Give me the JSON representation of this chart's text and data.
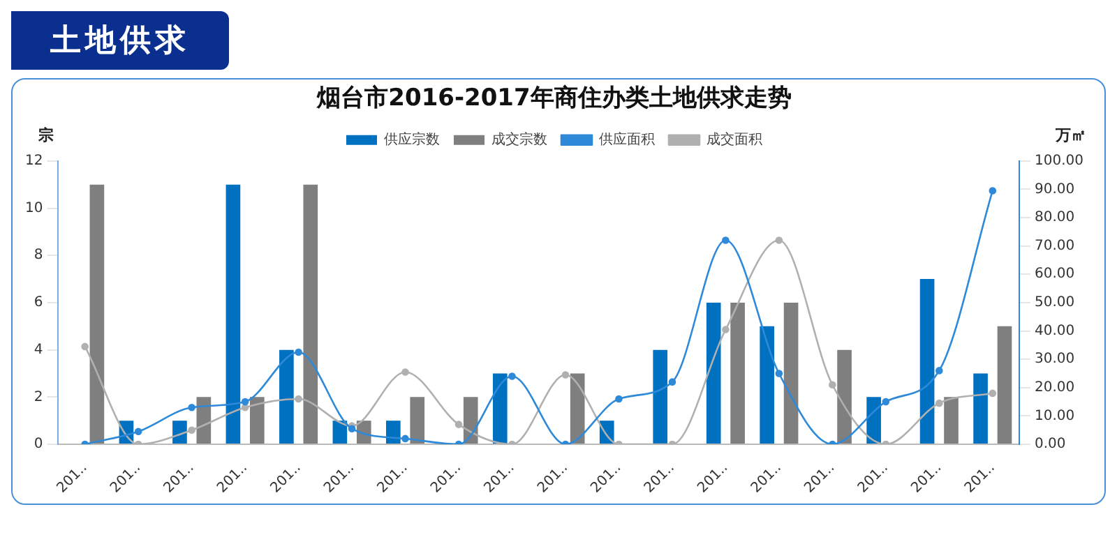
{
  "chart_data": {
    "type": "bar",
    "title": "烟台市2016-2017年商住办类土地供求走势",
    "ylabel": "宗",
    "y2label": "万㎡",
    "annotations": [
      "土地供求"
    ],
    "categories": [
      "201..",
      "201..",
      "201..",
      "201..",
      "201..",
      "201..",
      "201..",
      "201..",
      "201..",
      "201..",
      "201..",
      "201..",
      "201..",
      "201..",
      "201..",
      "201..",
      "201..",
      "201.."
    ],
    "series": [
      {
        "name": "供应宗数",
        "color": "#0070c0",
        "values": [
          0,
          1,
          1,
          11,
          4,
          1,
          1,
          0,
          3,
          0,
          1,
          4,
          6,
          5,
          0,
          2,
          7,
          3
        ]
      },
      {
        "name": "成交宗数",
        "color": "#7f7f7f",
        "values": [
          11,
          0,
          2,
          2,
          11,
          1,
          2,
          2,
          0,
          3,
          0,
          0,
          6,
          6,
          4,
          0,
          2,
          5
        ]
      },
      {
        "name": "供应面积",
        "type": "line",
        "axis": "y2",
        "color": "#2e8ad8",
        "marker": "circle",
        "values": [
          0,
          4.5,
          13,
          15,
          32.5,
          5.5,
          2,
          0,
          24,
          0,
          16,
          22,
          72,
          25,
          0,
          15,
          26,
          89.5
        ]
      },
      {
        "name": "成交面积",
        "type": "line",
        "axis": "y2",
        "color": "#b0b0b0",
        "marker": "circle",
        "values": [
          34.5,
          0,
          5,
          13,
          16,
          6.5,
          25.5,
          7,
          0,
          24.5,
          0,
          0,
          40.5,
          72,
          21,
          0,
          14.5,
          18
        ]
      }
    ],
    "ylim": [
      0,
      12
    ],
    "yticks": [
      0,
      2,
      4,
      6,
      8,
      10,
      12
    ],
    "y2lim": [
      0,
      100
    ],
    "y2ticks": [
      {
        "value": 0,
        "label": "0.00"
      },
      {
        "value": 10,
        "label": "10.00"
      },
      {
        "value": 20,
        "label": "20.00"
      },
      {
        "value": 30,
        "label": "30.00"
      },
      {
        "value": 40,
        "label": "40.00"
      },
      {
        "value": 50,
        "label": "50.00"
      },
      {
        "value": 60,
        "label": "60.00"
      },
      {
        "value": 70,
        "label": "70.00"
      },
      {
        "value": 80,
        "label": "80.00"
      },
      {
        "value": 90,
        "label": "90.00"
      },
      {
        "value": 100,
        "label": "100.00"
      }
    ],
    "grid": false,
    "legend": "top",
    "line_style": "solid"
  }
}
